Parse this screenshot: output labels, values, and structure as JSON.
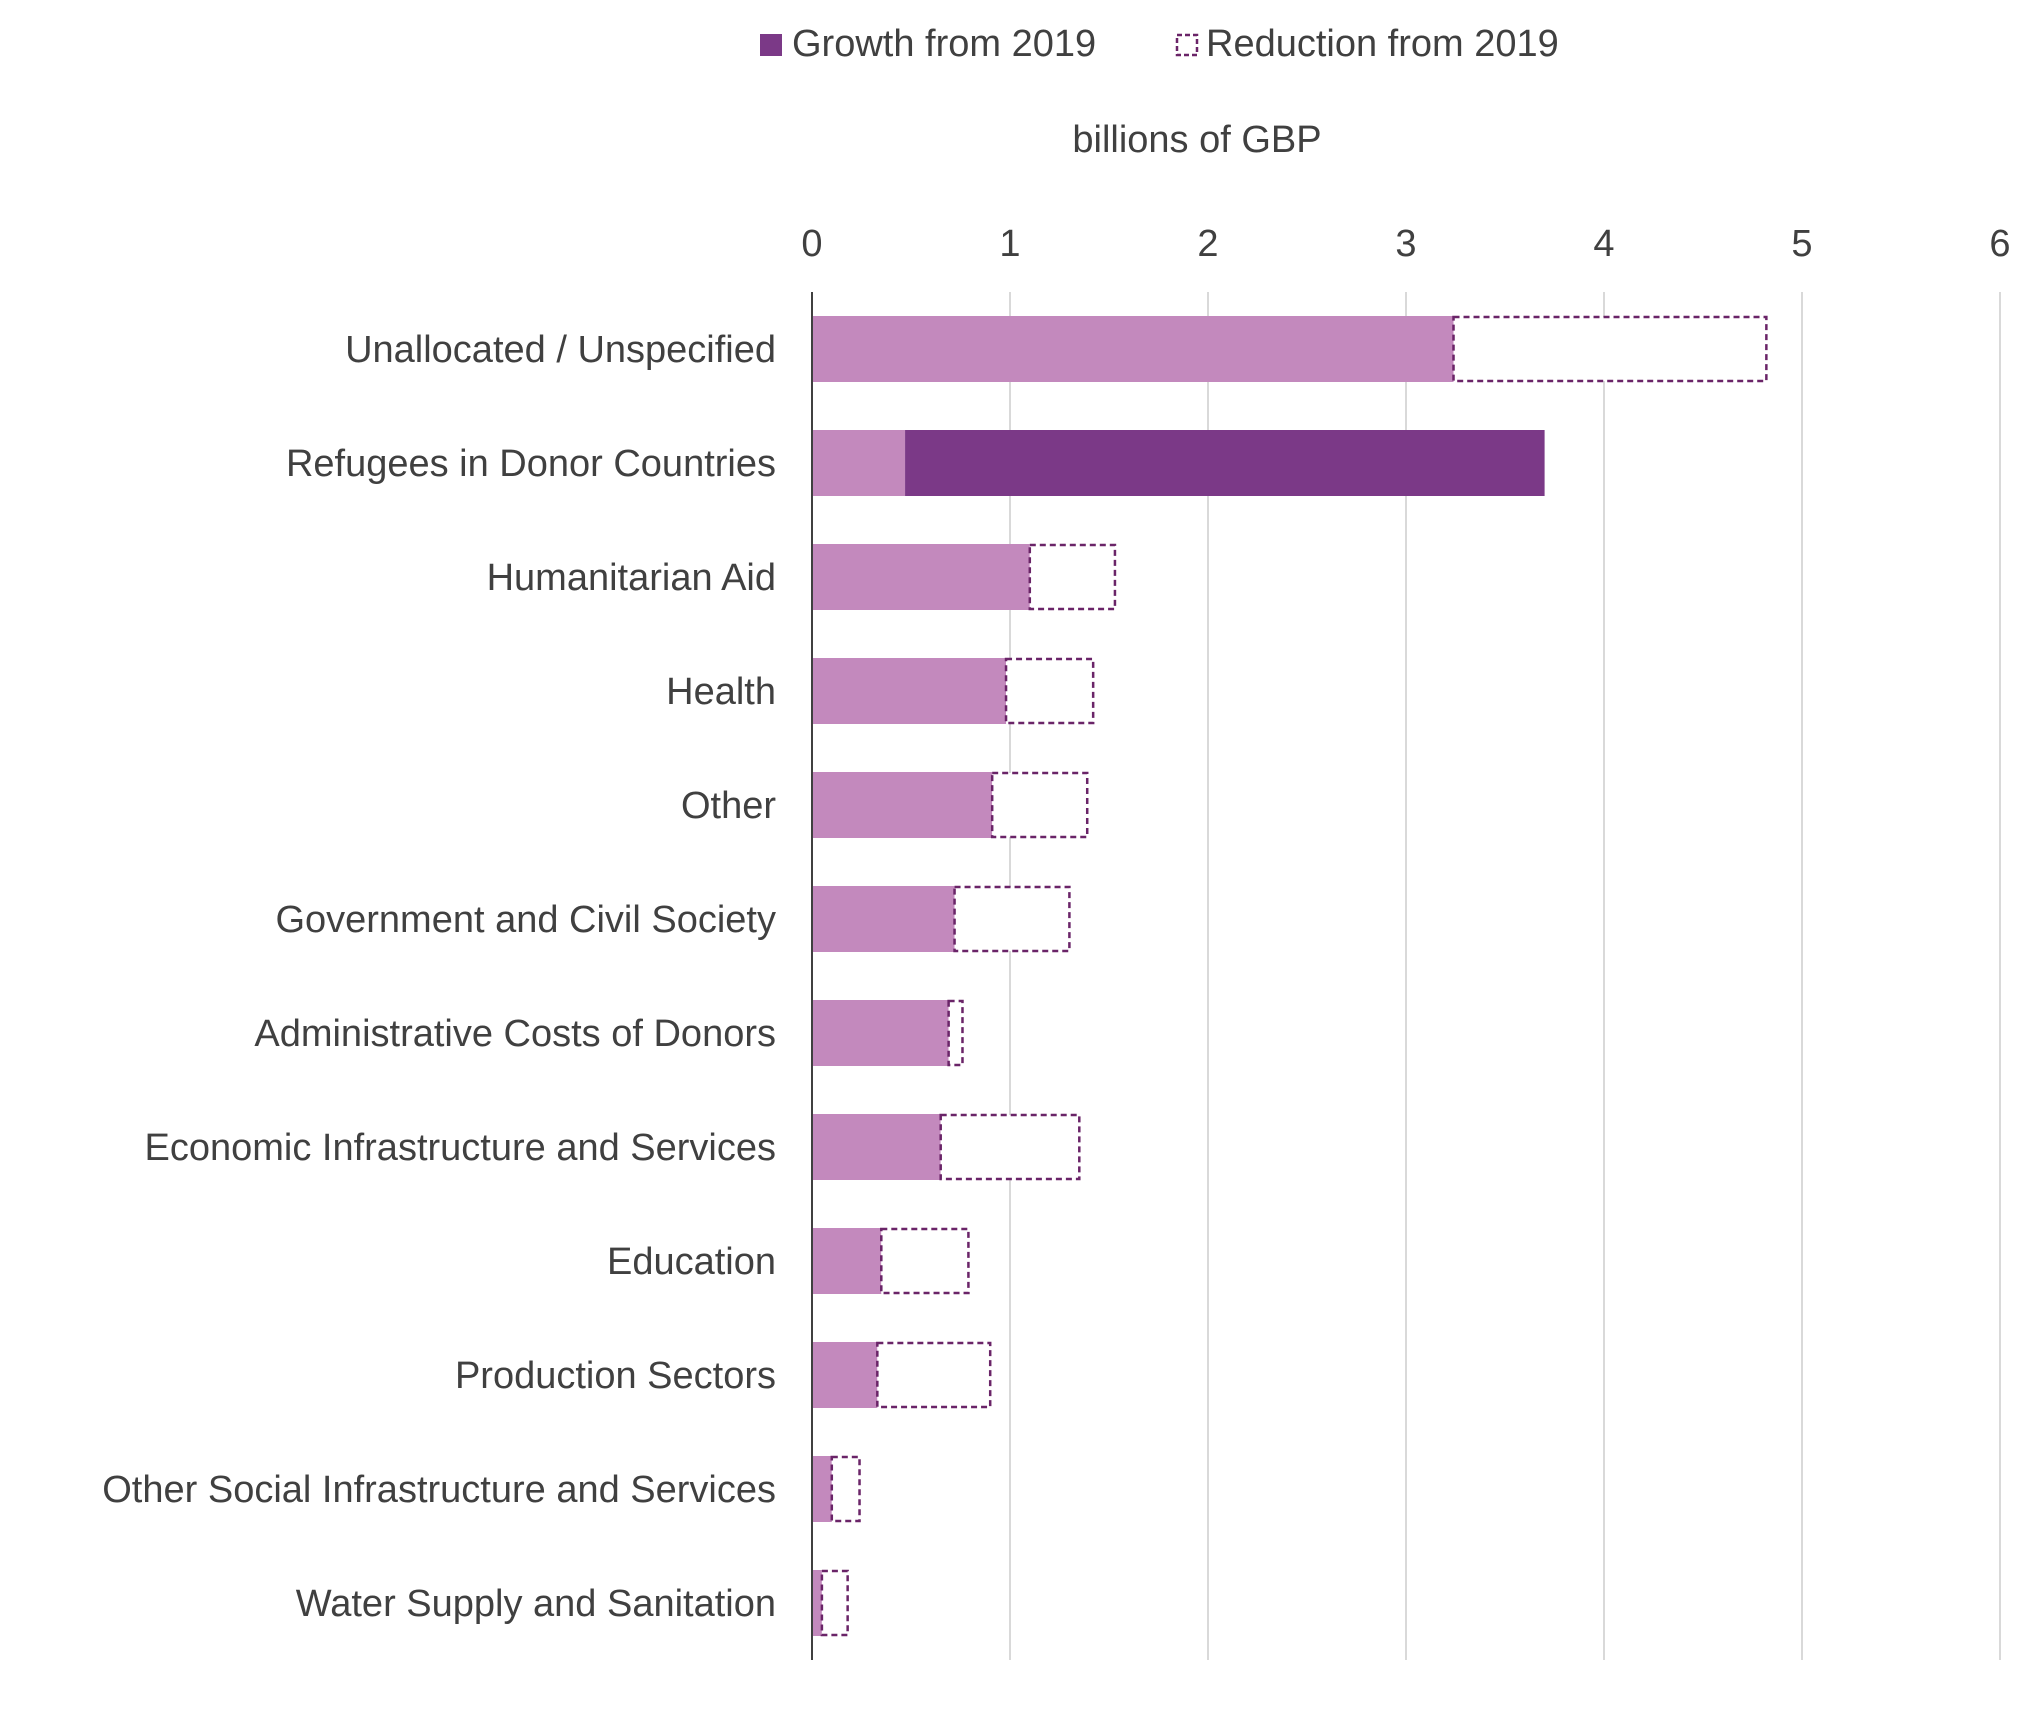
{
  "chart_data": {
    "type": "bar",
    "orientation": "horizontal",
    "stacked": true,
    "xlabel": "billions of GBP",
    "xlim": [
      0,
      6
    ],
    "xticks": [
      "0",
      "1",
      "2",
      "3",
      "4",
      "5",
      "6"
    ],
    "grid": true,
    "legend": {
      "position": "top",
      "entries": [
        "Growth from 2019",
        "Reduction from 2019"
      ]
    },
    "categories": [
      "Unallocated / Unspecified",
      "Refugees in Donor Countries",
      "Humanitarian Aid",
      "Health",
      "Other",
      "Government and Civil Society",
      "Administrative Costs of Donors",
      "Economic Infrastructure and Services",
      "Education",
      "Production Sectors",
      "Other Social Infrastructure and Services",
      "Water Supply and Sanitation"
    ],
    "series": [
      {
        "values": [
          3.24,
          0.47,
          1.1,
          0.98,
          0.91,
          0.72,
          0.69,
          0.65,
          0.35,
          0.33,
          0.1,
          0.05
        ]
      },
      {
        "name": "Growth from 2019",
        "values": [
          0,
          3.23,
          0,
          0,
          0,
          0,
          0,
          0,
          0,
          0,
          0,
          0
        ]
      },
      {
        "name": "Reduction from 2019",
        "values": [
          1.58,
          0,
          0.43,
          0.44,
          0.48,
          0.58,
          0.07,
          0.7,
          0.44,
          0.57,
          0.14,
          0.13
        ]
      }
    ],
    "colors": {
      "base": "#c389bd",
      "growth": "#7b3987",
      "reduction_stroke": "#6a2468",
      "grid": "#d9d9d9",
      "axis": "#404040"
    }
  }
}
